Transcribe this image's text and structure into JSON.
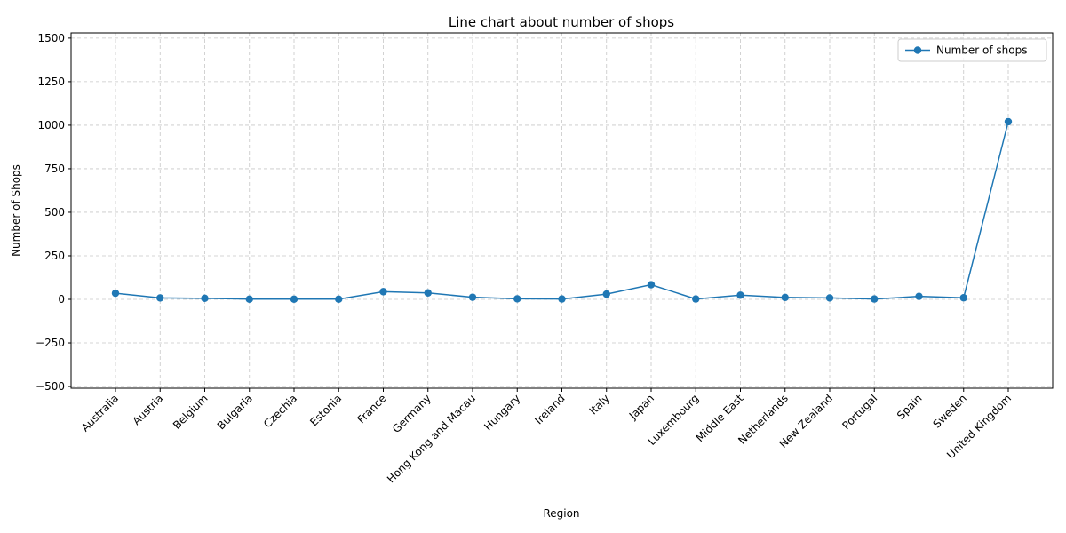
{
  "chart_data": {
    "type": "line",
    "title": "Line chart about number of shops",
    "xlabel": "Region",
    "ylabel": "Number of Shops",
    "categories": [
      "Australia",
      "Austria",
      "Belgium",
      "Bulgaria",
      "Czechia",
      "Estonia",
      "France",
      "Germany",
      "Hong Kong and Macau",
      "Hungary",
      "Ireland",
      "Italy",
      "Japan",
      "Luxembourg",
      "Middle East",
      "Netherlands",
      "New Zealand",
      "Portugal",
      "Spain",
      "Sweden",
      "United Kingdom"
    ],
    "series": [
      {
        "name": "Number of shops",
        "color": "#1f77b4",
        "marker": "circle",
        "values": [
          35,
          8,
          6,
          1,
          1,
          1,
          44,
          37,
          12,
          3,
          2,
          30,
          84,
          2,
          24,
          11,
          8,
          2,
          17,
          9,
          1020
        ]
      }
    ],
    "ylim": [
      -510,
      1530
    ],
    "yticks": [
      -500,
      -250,
      0,
      250,
      500,
      750,
      1000,
      1250,
      1500
    ],
    "grid": true,
    "grid_style": "dashed",
    "legend_position": "top-right",
    "xtick_rotation": 45
  }
}
